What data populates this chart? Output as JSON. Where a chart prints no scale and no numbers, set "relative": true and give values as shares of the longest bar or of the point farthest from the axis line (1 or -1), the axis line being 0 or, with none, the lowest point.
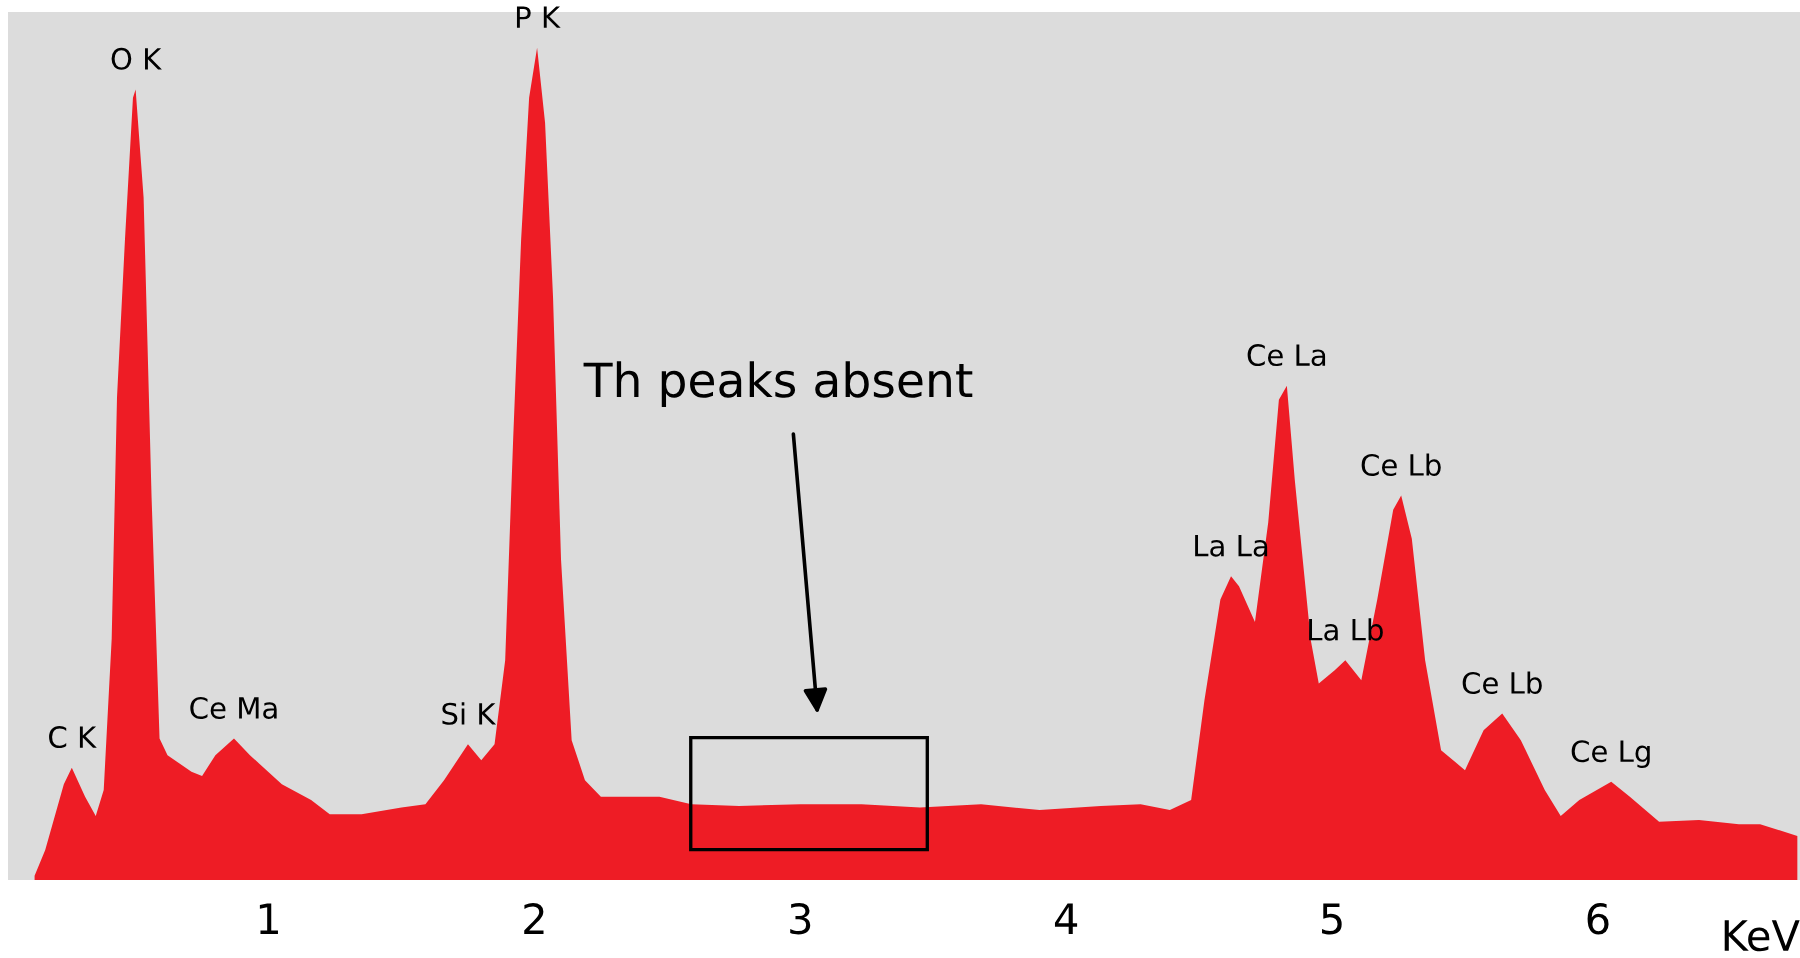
{
  "chart_data": {
    "type": "area",
    "relative": true,
    "color": "#ee1c25",
    "xlabel": "KeV",
    "xlim": [
      0.02,
      6.76
    ],
    "xticks": [
      1,
      2,
      3,
      4,
      5,
      6
    ],
    "grid": false,
    "legend": false,
    "x": [
      0.12,
      0.16,
      0.23,
      0.26,
      0.31,
      0.35,
      0.38,
      0.41,
      0.43,
      0.46,
      0.49,
      0.5,
      0.53,
      0.56,
      0.59,
      0.62,
      0.71,
      0.75,
      0.8,
      0.87,
      0.93,
      1.05,
      1.16,
      1.23,
      1.35,
      1.5,
      1.59,
      1.66,
      1.75,
      1.8,
      1.85,
      1.89,
      1.92,
      1.95,
      1.98,
      2.01,
      2.04,
      2.07,
      2.1,
      2.14,
      2.19,
      2.25,
      2.47,
      2.59,
      2.77,
      3.0,
      3.23,
      3.45,
      3.68,
      3.9,
      4.13,
      4.28,
      4.39,
      4.47,
      4.52,
      4.58,
      4.62,
      4.65,
      4.71,
      4.76,
      4.8,
      4.83,
      4.86,
      4.92,
      4.95,
      5.01,
      5.05,
      5.11,
      5.17,
      5.23,
      5.26,
      5.3,
      5.35,
      5.41,
      5.5,
      5.57,
      5.64,
      5.71,
      5.8,
      5.86,
      5.93,
      6.05,
      6.12,
      6.23,
      6.38,
      6.53,
      6.61,
      6.75
    ],
    "values": [
      0.005,
      0.036,
      0.115,
      0.135,
      0.1,
      0.077,
      0.108,
      0.29,
      0.58,
      0.77,
      0.94,
      0.95,
      0.82,
      0.46,
      0.17,
      0.15,
      0.13,
      0.125,
      0.15,
      0.17,
      0.15,
      0.115,
      0.096,
      0.079,
      0.079,
      0.087,
      0.091,
      0.12,
      0.163,
      0.144,
      0.163,
      0.264,
      0.53,
      0.77,
      0.94,
      1.0,
      0.91,
      0.7,
      0.385,
      0.168,
      0.12,
      0.1,
      0.1,
      0.091,
      0.089,
      0.091,
      0.091,
      0.087,
      0.091,
      0.084,
      0.089,
      0.091,
      0.084,
      0.096,
      0.216,
      0.337,
      0.365,
      0.353,
      0.31,
      0.43,
      0.577,
      0.594,
      0.48,
      0.288,
      0.236,
      0.252,
      0.264,
      0.24,
      0.337,
      0.445,
      0.462,
      0.41,
      0.264,
      0.156,
      0.132,
      0.18,
      0.2,
      0.168,
      0.108,
      0.077,
      0.096,
      0.118,
      0.1,
      0.07,
      0.072,
      0.067,
      0.067,
      0.053
    ],
    "annotations": [
      {
        "text": "C K",
        "x": 0.26,
        "y": 0.135
      },
      {
        "text": "O K",
        "x": 0.5,
        "y": 0.95
      },
      {
        "text": "Ce Ma",
        "x": 0.87,
        "y": 0.17
      },
      {
        "text": "Si K",
        "x": 1.75,
        "y": 0.163
      },
      {
        "text": "P K",
        "x": 2.01,
        "y": 1.0
      },
      {
        "text": "La La",
        "x": 4.62,
        "y": 0.365
      },
      {
        "text": "Ce La",
        "x": 4.83,
        "y": 0.594
      },
      {
        "text": "La Lb",
        "x": 5.05,
        "y": 0.264
      },
      {
        "text": "Ce Lb",
        "x": 5.26,
        "y": 0.462
      },
      {
        "text": "Ce Lb",
        "x": 5.64,
        "y": 0.2
      },
      {
        "text": "Ce Lg",
        "x": 6.05,
        "y": 0.118
      },
      "Th peaks absent"
    ]
  }
}
